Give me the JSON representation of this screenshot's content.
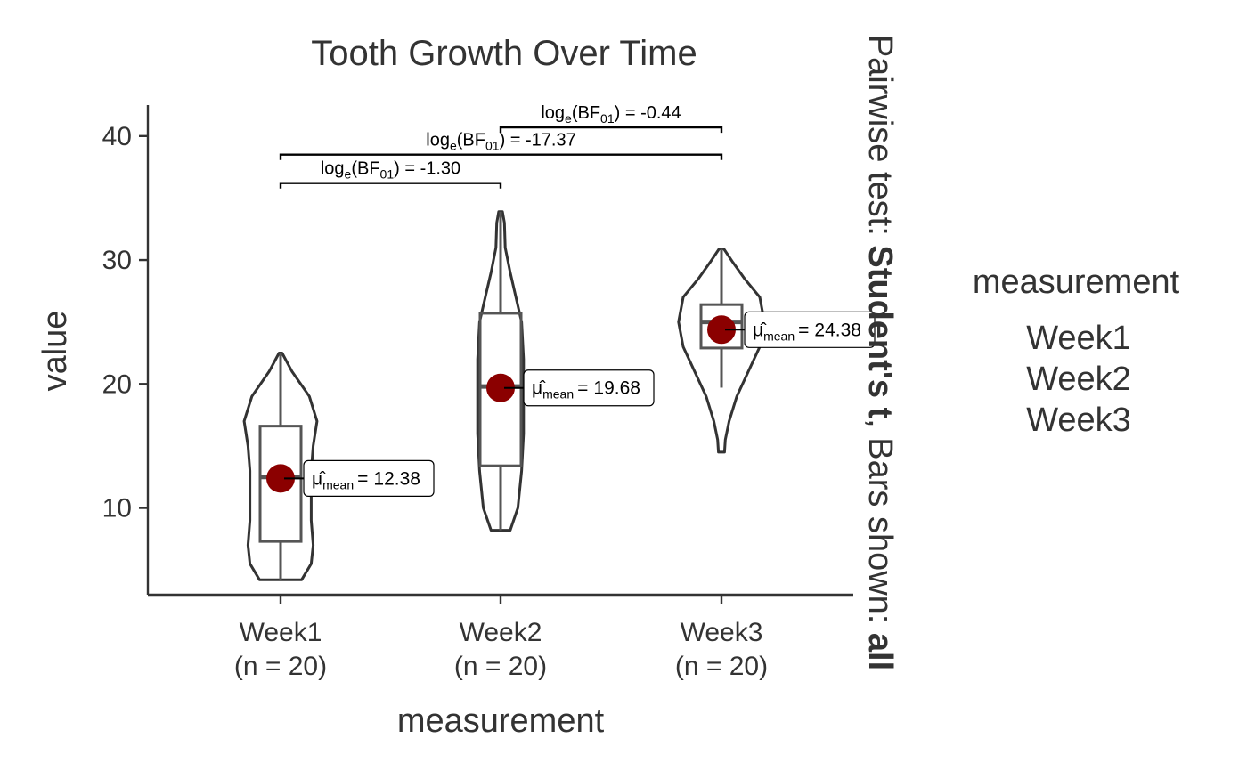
{
  "chart_data": {
    "type": "violin",
    "title": "Tooth Growth Over Time",
    "xlabel": "measurement",
    "ylabel": "value",
    "ylim": [
      3.0,
      42.5
    ],
    "yticks": [
      10,
      20,
      30,
      40
    ],
    "grid": false,
    "categories": [
      "Week1",
      "Week2",
      "Week3"
    ],
    "n_labels": [
      "(n = 20)",
      "(n = 20)",
      "(n = 20)"
    ],
    "groups": [
      {
        "name": "Week1",
        "mean": 12.38,
        "mean_label": "12.38",
        "box": {
          "q1": 7.3,
          "median": 12.5,
          "q3": 16.6,
          "whisker_low": 4.2,
          "whisker_high": 22.5
        },
        "violin": {
          "min": 4.2,
          "max": 22.5,
          "profile": [
            [
              4.2,
              0.55
            ],
            [
              5.5,
              0.8
            ],
            [
              7,
              0.85
            ],
            [
              9,
              0.8
            ],
            [
              11,
              0.8
            ],
            [
              13,
              0.8
            ],
            [
              15,
              0.85
            ],
            [
              17,
              0.95
            ],
            [
              19,
              0.75
            ],
            [
              21,
              0.3
            ],
            [
              22.5,
              0.04
            ]
          ]
        }
      },
      {
        "name": "Week2",
        "mean": 19.68,
        "mean_label": "19.68",
        "box": {
          "q1": 13.4,
          "median": 19.8,
          "q3": 25.7,
          "whisker_low": 8.2,
          "whisker_high": 33.9
        },
        "violin": {
          "min": 8.2,
          "max": 33.9,
          "profile": [
            [
              8.2,
              0.25
            ],
            [
              10,
              0.45
            ],
            [
              13,
              0.55
            ],
            [
              16,
              0.6
            ],
            [
              19,
              0.6
            ],
            [
              22,
              0.6
            ],
            [
              25,
              0.55
            ],
            [
              27,
              0.4
            ],
            [
              29,
              0.25
            ],
            [
              31,
              0.12
            ],
            [
              33,
              0.1
            ],
            [
              33.9,
              0.05
            ]
          ]
        }
      },
      {
        "name": "Week3",
        "mean": 24.38,
        "mean_label": "24.38",
        "box": {
          "q1": 22.9,
          "median": 25.0,
          "q3": 26.4,
          "whisker_low": 19.7,
          "whisker_high": 30.9
        },
        "violin": {
          "min": 14.5,
          "max": 30.9,
          "profile": [
            [
              14.5,
              0.08
            ],
            [
              15.5,
              0.1
            ],
            [
              17,
              0.2
            ],
            [
              19,
              0.4
            ],
            [
              21,
              0.7
            ],
            [
              23,
              1.0
            ],
            [
              25,
              1.12
            ],
            [
              27,
              1.0
            ],
            [
              28.5,
              0.6
            ],
            [
              29.8,
              0.3
            ],
            [
              30.9,
              0.06
            ]
          ]
        }
      }
    ],
    "mean_label_prefix": "μ̂",
    "mean_label_sub": "mean",
    "mean_label_sep": "=",
    "pairwise": [
      {
        "from": "Week1",
        "to": "Week2",
        "y": 36.2,
        "label_pre": "log",
        "label_sub1": "e",
        "label_mid": "(BF",
        "label_sub2": "01",
        "label_post": ") = -1.30"
      },
      {
        "from": "Week1",
        "to": "Week3",
        "y": 38.5,
        "label_pre": "log",
        "label_sub1": "e",
        "label_mid": "(BF",
        "label_sub2": "01",
        "label_post": ") = -17.37"
      },
      {
        "from": "Week2",
        "to": "Week3",
        "y": 40.7,
        "label_pre": "log",
        "label_sub1": "e",
        "label_mid": "(BF",
        "label_sub2": "01",
        "label_post": ") = -0.44"
      }
    ],
    "side_caption": {
      "part1": "Pairwise test: ",
      "part2_bold": "Student's t",
      "part3": ", Bars shown: ",
      "part4_bold": "all"
    },
    "legend": {
      "title": "measurement",
      "items": [
        "Week1",
        "Week2",
        "Week3"
      ],
      "position": "right"
    },
    "colors": {
      "mean_point": "#8B0000",
      "lines": "#333333",
      "box": "#555555"
    }
  }
}
